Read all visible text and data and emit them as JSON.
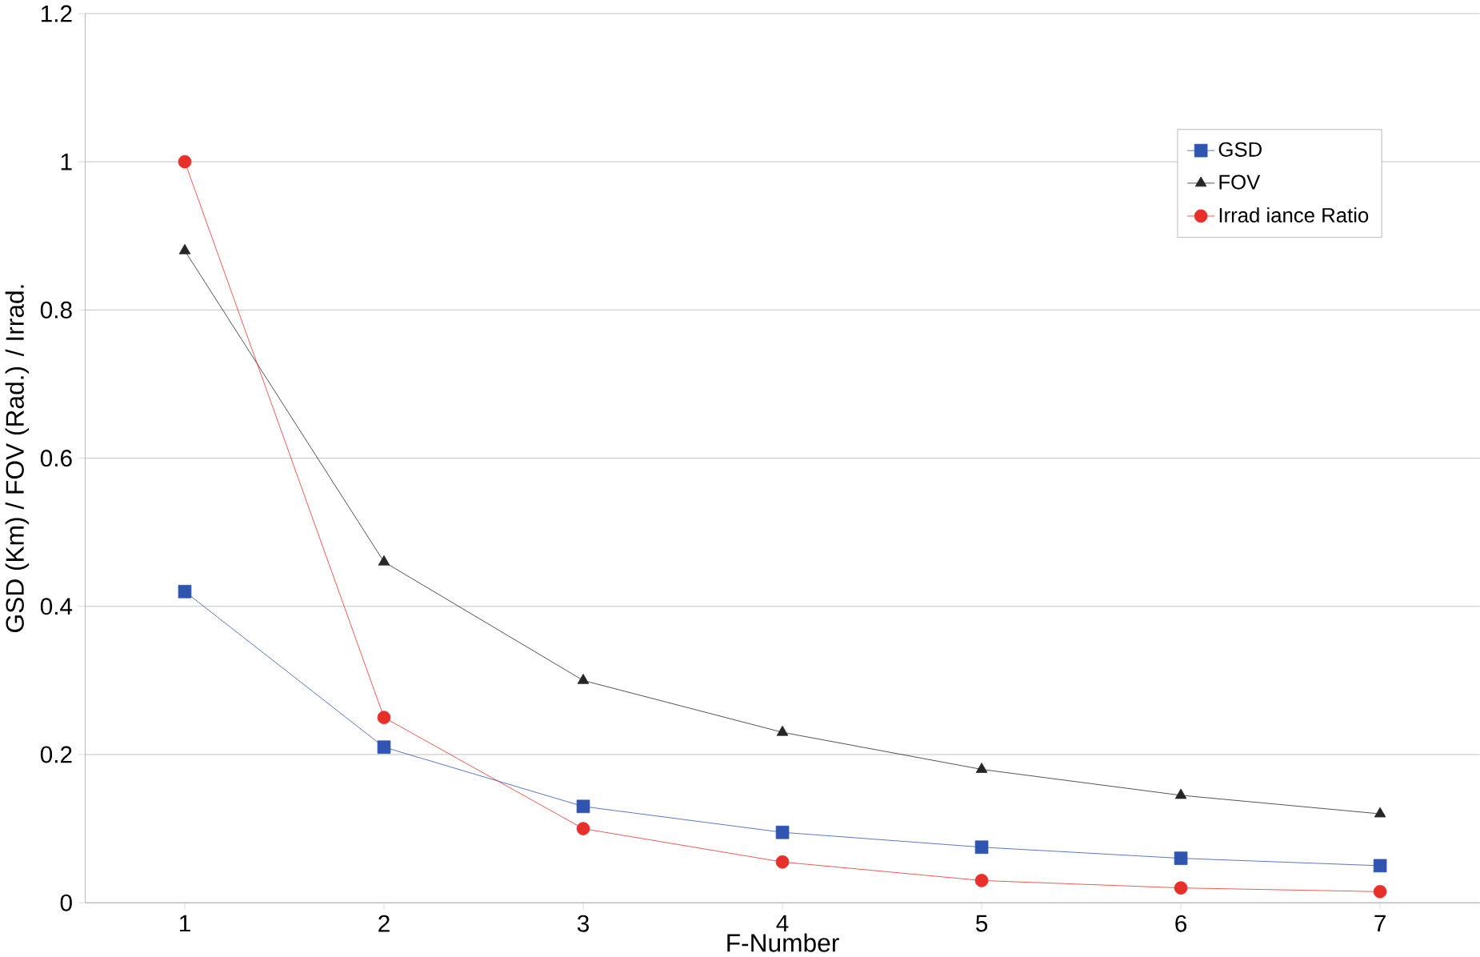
{
  "chart_data": {
    "type": "line",
    "xlabel": "F-Number",
    "ylabel": "GSD (Km) / FOV (Rad.) / Irrad.",
    "categories": [
      "1",
      "2",
      "3",
      "4",
      "5",
      "6",
      "7"
    ],
    "series": [
      {
        "name": "GSD",
        "color": "#2f55b0",
        "marker": "square",
        "values": [
          0.42,
          0.21,
          0.13,
          0.095,
          0.075,
          0.06,
          0.05
        ]
      },
      {
        "name": "FOV",
        "color": "#262626",
        "marker": "triangle",
        "values": [
          0.88,
          0.46,
          0.3,
          0.23,
          0.18,
          0.145,
          0.12
        ]
      },
      {
        "name": "Irrad iance Ratio",
        "color": "#e8302a",
        "marker": "circle",
        "values": [
          1.0,
          0.25,
          0.1,
          0.055,
          0.03,
          0.02,
          0.015
        ]
      }
    ],
    "ylim": [
      0,
      1.2
    ],
    "yticks": [
      0,
      0.2,
      0.4,
      0.6,
      0.8,
      1,
      1.2
    ],
    "grid": "y",
    "legend": "top right",
    "line_style": "solid"
  }
}
